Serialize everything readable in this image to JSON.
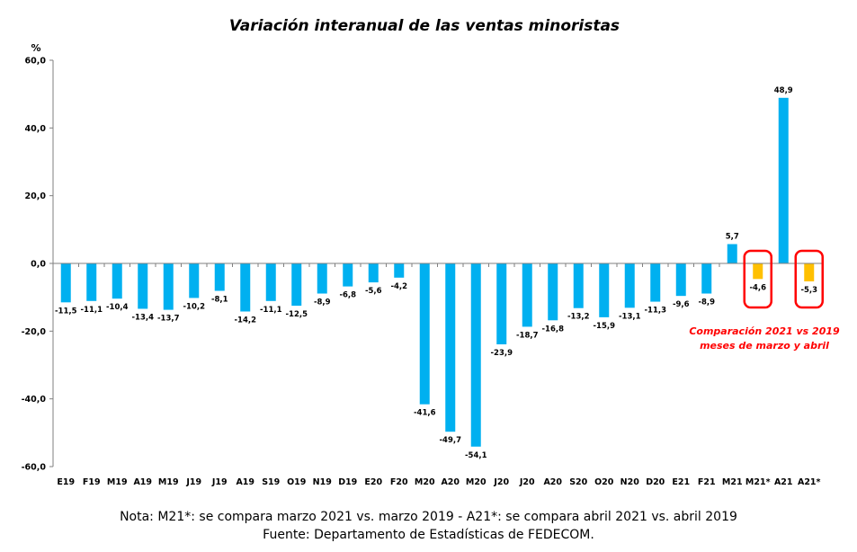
{
  "chart_data": {
    "type": "bar",
    "title": "Variación interanual de las ventas minoristas",
    "ylabel": "%",
    "xlabel": "",
    "ylim": [
      -60,
      60
    ],
    "yticks": [
      "60,0",
      "40,0",
      "20,0",
      "0,0",
      "-20,0",
      "-40,0",
      "-60,0"
    ],
    "ytick_values": [
      60,
      40,
      20,
      0,
      -20,
      -40,
      -60
    ],
    "grid": false,
    "legend": "none",
    "categories": [
      "E19",
      "F19",
      "M19",
      "A19",
      "M19",
      "J19",
      "J19",
      "A19",
      "S19",
      "O19",
      "N19",
      "D19",
      "E20",
      "F20",
      "M20",
      "A20",
      "M20",
      "J20",
      "J20",
      "A20",
      "S20",
      "O20",
      "N20",
      "D20",
      "E21",
      "F21",
      "M21",
      "M21*",
      "A21",
      "A21*"
    ],
    "values": [
      -11.5,
      -11.1,
      -10.4,
      -13.4,
      -13.7,
      -10.2,
      -8.1,
      -14.2,
      -11.1,
      -12.5,
      -8.9,
      -6.8,
      -5.6,
      -4.2,
      -41.6,
      -49.7,
      -54.1,
      -23.9,
      -18.7,
      -16.8,
      -13.2,
      -15.9,
      -13.1,
      -11.3,
      -9.6,
      -8.9,
      5.7,
      -4.6,
      48.9,
      -5.3
    ],
    "value_labels": [
      "-11,5",
      "-11,1",
      "-10,4",
      "-13,4",
      "-13,7",
      "-10,2",
      "-8,1",
      "-14,2",
      "-11,1",
      "-12,5",
      "-8,9",
      "-6,8",
      "-5,6",
      "-4,2",
      "-41,6",
      "-49,7",
      "-54,1",
      "-23,9",
      "-18,7",
      "-16,8",
      "-13,2",
      "-15,9",
      "-13,1",
      "-11,3",
      "-9,6",
      "-8,9",
      "5,7",
      "-4,6",
      "48,9",
      "-5,3"
    ],
    "highlighted": [
      false,
      false,
      false,
      false,
      false,
      false,
      false,
      false,
      false,
      false,
      false,
      false,
      false,
      false,
      false,
      false,
      false,
      false,
      false,
      false,
      false,
      false,
      false,
      false,
      false,
      false,
      false,
      true,
      false,
      true
    ],
    "colors": {
      "bar": "#00b0f0",
      "highlight_bar": "#ffc000",
      "annotation": "#ff0000",
      "axis": "#7f7f7f"
    },
    "annotation": {
      "lines": [
        "Comparación 2021 vs 2019",
        "meses de marzo y abril"
      ]
    }
  },
  "footer": {
    "note": "Nota: M21*: se compara marzo 2021 vs. marzo 2019 - A21*: se compara abril 2021 vs. abril 2019",
    "source": "Fuente: Departamento de Estadísticas de FEDECOM."
  }
}
